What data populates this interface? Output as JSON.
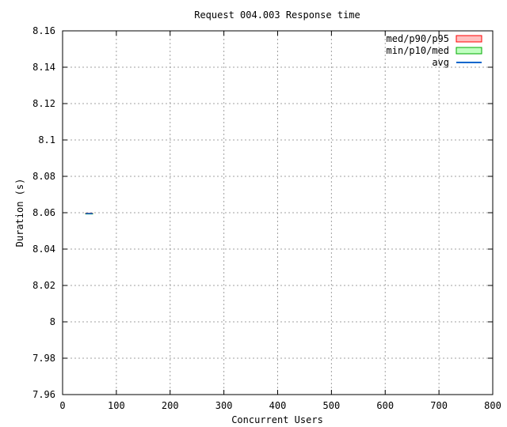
{
  "chart_data": {
    "type": "area",
    "title": "Request 004.003 Response time",
    "xlabel": "Concurrent Users",
    "ylabel": "Duration (s)",
    "xlim": [
      0,
      800
    ],
    "ylim": [
      7.96,
      8.16
    ],
    "x_ticks": [
      "0",
      "100",
      "200",
      "300",
      "400",
      "500",
      "600",
      "700",
      "800"
    ],
    "y_ticks": [
      "7.96",
      "7.98",
      "8",
      "8.02",
      "8.04",
      "8.06",
      "8.08",
      "8.1",
      "8.12",
      "8.14",
      "8.16"
    ],
    "grid": true,
    "legend_position": "top-right",
    "x": [
      43,
      56
    ],
    "series": [
      {
        "name": "med/p90/p95",
        "kind": "band",
        "color": "#ff0000",
        "fill": "#ffc0c0",
        "lower": [
          8.0595,
          8.0595
        ],
        "upper": [
          8.0597,
          8.0597
        ]
      },
      {
        "name": "min/p10/med",
        "kind": "band",
        "color": "#00aa00",
        "fill": "#c0ffc0",
        "lower": [
          8.0593,
          8.0593
        ],
        "upper": [
          8.0595,
          8.0595
        ]
      },
      {
        "name": "avg",
        "kind": "line",
        "color": "#0066cc",
        "values": [
          8.0595,
          8.0595
        ]
      }
    ]
  }
}
